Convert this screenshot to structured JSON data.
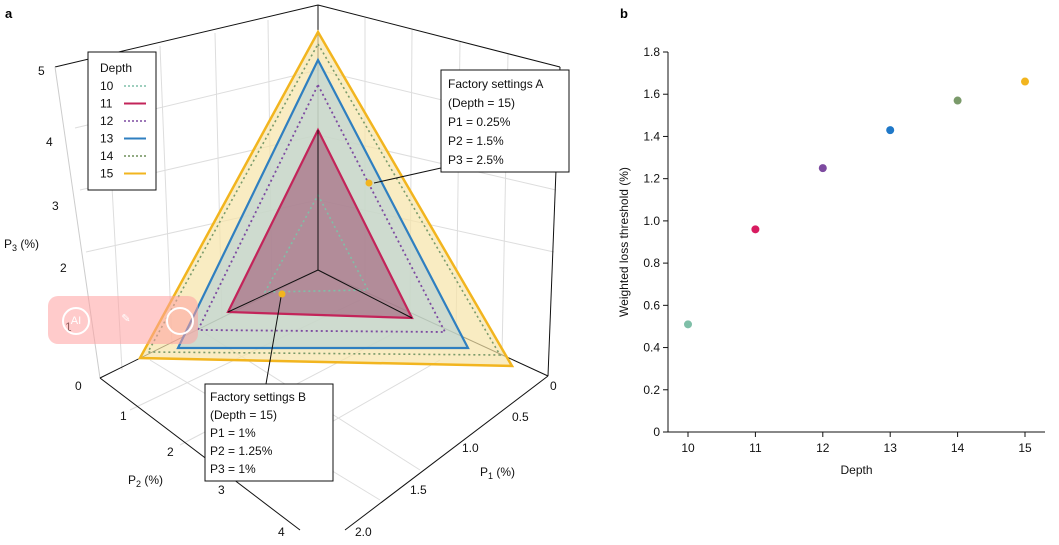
{
  "panel_a": {
    "label": "a",
    "axis_labels": {
      "p1": "P1 (%)",
      "p2": "P2 (%)",
      "p3": "P3 (%)"
    },
    "p1_ticks": [
      "0",
      "0.5",
      "1.0",
      "1.5",
      "2.0"
    ],
    "p2_ticks": [
      "0",
      "1",
      "2",
      "3",
      "4"
    ],
    "p3_ticks": [
      "1",
      "2",
      "3",
      "4",
      "5"
    ],
    "legend": {
      "title": "Depth",
      "items": [
        {
          "label": "10",
          "color": "#7fbfa8",
          "style": "dotted"
        },
        {
          "label": "11",
          "color": "#c3245a",
          "style": "solid"
        },
        {
          "label": "12",
          "color": "#7d4aa0",
          "style": "dotted"
        },
        {
          "label": "13",
          "color": "#2f7fc0",
          "style": "solid"
        },
        {
          "label": "14",
          "color": "#6f8f5a",
          "style": "dotted"
        },
        {
          "label": "15",
          "color": "#f2b51f",
          "style": "solid"
        }
      ]
    },
    "annotation_a": {
      "lines": [
        "Factory settings A",
        "(Depth = 15)",
        "P1 = 0.25%",
        "P2 = 1.5%",
        "P3 = 2.5%"
      ]
    },
    "annotation_b": {
      "lines": [
        "Factory settings B",
        "(Depth = 15)",
        "P1 = 1%",
        "P2 = 1.25%",
        "P3 = 1%"
      ]
    }
  },
  "chart_data": {
    "type": "scatter",
    "panel": "b",
    "x": [
      10,
      11,
      12,
      13,
      14,
      15
    ],
    "y": [
      0.51,
      0.96,
      1.25,
      1.43,
      1.57,
      1.66
    ],
    "colors": [
      "#7fbfa8",
      "#d81b60",
      "#7d4aa0",
      "#1f78c8",
      "#7a9a6a",
      "#f2b51f"
    ],
    "title": "",
    "xlabel": "Depth",
    "ylabel": "Weighted loss threshold (%)",
    "xlim": [
      10,
      15
    ],
    "ylim": [
      0,
      1.8
    ],
    "yticks": [
      "0",
      "0.2",
      "0.4",
      "0.6",
      "0.8",
      "1.0",
      "1.2",
      "1.4",
      "1.6",
      "1.8"
    ],
    "xticks": [
      "10",
      "11",
      "12",
      "13",
      "14",
      "15"
    ],
    "grid": false,
    "legend": "none"
  }
}
